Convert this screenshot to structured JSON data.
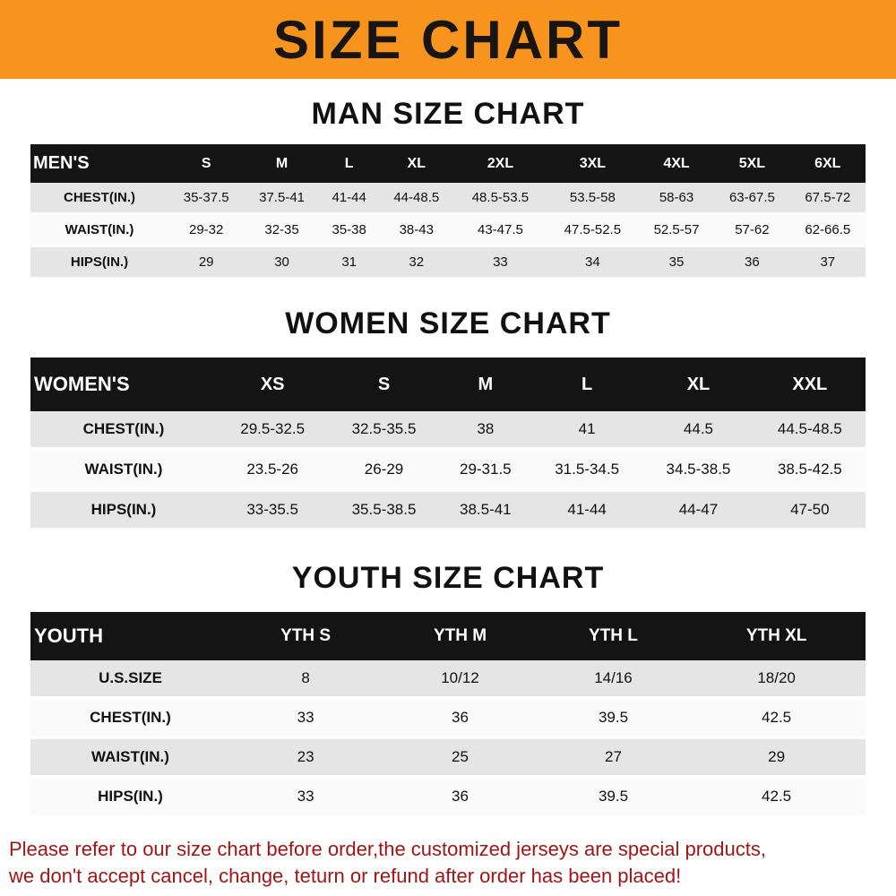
{
  "banner": {
    "title": "SIZE CHART"
  },
  "sections": [
    {
      "heading": "MAN SIZE CHART",
      "table": {
        "header": [
          "MEN'S",
          "S",
          "M",
          "L",
          "XL",
          "2XL",
          "3XL",
          "4XL",
          "5XL",
          "6XL"
        ],
        "rows": [
          [
            "CHEST(IN.)",
            "35-37.5",
            "37.5-41",
            "41-44",
            "44-48.5",
            "48.5-53.5",
            "53.5-58",
            "58-63",
            "63-67.5",
            "67.5-72"
          ],
          [
            "WAIST(IN.)",
            "29-32",
            "32-35",
            "35-38",
            "38-43",
            "43-47.5",
            "47.5-52.5",
            "52.5-57",
            "57-62",
            "62-66.5"
          ],
          [
            "HIPS(IN.)",
            "29",
            "30",
            "31",
            "32",
            "33",
            "34",
            "35",
            "36",
            "37"
          ]
        ]
      }
    },
    {
      "heading": "WOMEN SIZE CHART",
      "table": {
        "header": [
          "WOMEN'S",
          "XS",
          "S",
          "M",
          "L",
          "XL",
          "XXL"
        ],
        "rows": [
          [
            "CHEST(IN.)",
            "29.5-32.5",
            "32.5-35.5",
            "38",
            "41",
            "44.5",
            "44.5-48.5"
          ],
          [
            "WAIST(IN.)",
            "23.5-26",
            "26-29",
            "29-31.5",
            "31.5-34.5",
            "34.5-38.5",
            "38.5-42.5"
          ],
          [
            "HIPS(IN.)",
            "33-35.5",
            "35.5-38.5",
            "38.5-41",
            "41-44",
            "44-47",
            "47-50"
          ]
        ]
      }
    },
    {
      "heading": "YOUTH SIZE CHART",
      "table": {
        "header": [
          "YOUTH",
          "YTH S",
          "YTH M",
          "YTH L",
          "YTH XL"
        ],
        "rows": [
          [
            "U.S.SIZE",
            "8",
            "10/12",
            "14/16",
            "18/20"
          ],
          [
            "CHEST(IN.)",
            "33",
            "36",
            "39.5",
            "42.5"
          ],
          [
            "WAIST(IN.)",
            "23",
            "25",
            "27",
            "29"
          ],
          [
            "HIPS(IN.)",
            "33",
            "36",
            "39.5",
            "42.5"
          ]
        ]
      }
    }
  ],
  "footer": {
    "line1": "Please refer to our size chart before order,the customized jerseys are special products,",
    "line2": "we don't accept cancel, change, teturn or refund after order has been placed!"
  },
  "colors": {
    "banner_background": "#f7941d",
    "table_header_background": "#141414",
    "row_stripe": "#e5e5e5",
    "footer_text": "#a31414"
  }
}
